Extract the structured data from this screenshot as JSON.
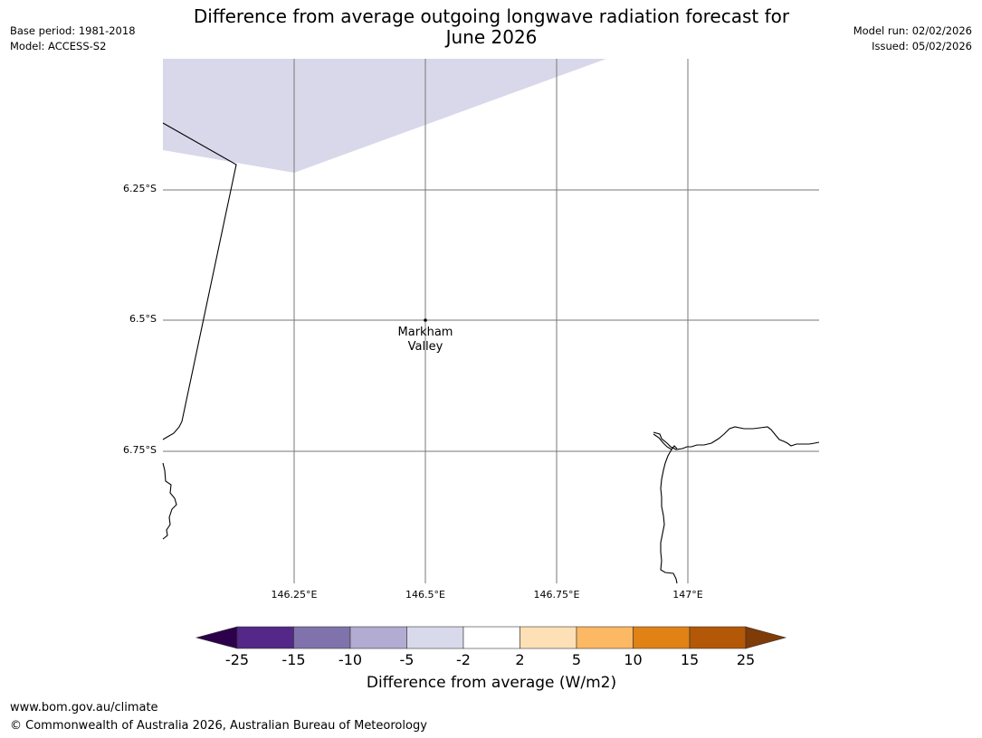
{
  "header": {
    "title_line1": "Difference from average outgoing longwave radiation forecast for",
    "title_line2": "June 2026",
    "base_period": "Base period: 1981-2018",
    "model": "Model: ACCESS-S2",
    "model_run": "Model run: 02/02/2026",
    "issued": "Issued: 05/02/2026"
  },
  "map": {
    "lat_labels": [
      "6.25°S",
      "6.5°S",
      "6.75°S"
    ],
    "lon_labels": [
      "146.25°E",
      "146.5°E",
      "146.75°E",
      "147°E"
    ],
    "place": {
      "name_line1": "Markham",
      "name_line2": "Valley",
      "lat": -6.5,
      "lon": 146.5
    },
    "anomaly_region_color": "#d8d8ea"
  },
  "colorbar": {
    "label": "Difference from average (W/m2)",
    "ticks": [
      "-25",
      "-15",
      "-10",
      "-5",
      "-2",
      "2",
      "5",
      "10",
      "15",
      "25"
    ],
    "colors": {
      "below_min": "#2d004b",
      "bins": [
        "#542788",
        "#8073ac",
        "#b2abd2",
        "#d8daeb",
        "#ffffff",
        "#fee0b6",
        "#fdb863",
        "#e08214",
        "#b35806"
      ],
      "above_max": "#7f3b08"
    }
  },
  "footer": {
    "website": "www.bom.gov.au/climate",
    "copyright": "© Commonwealth of Australia 2026, Australian Bureau of Meteorology"
  }
}
